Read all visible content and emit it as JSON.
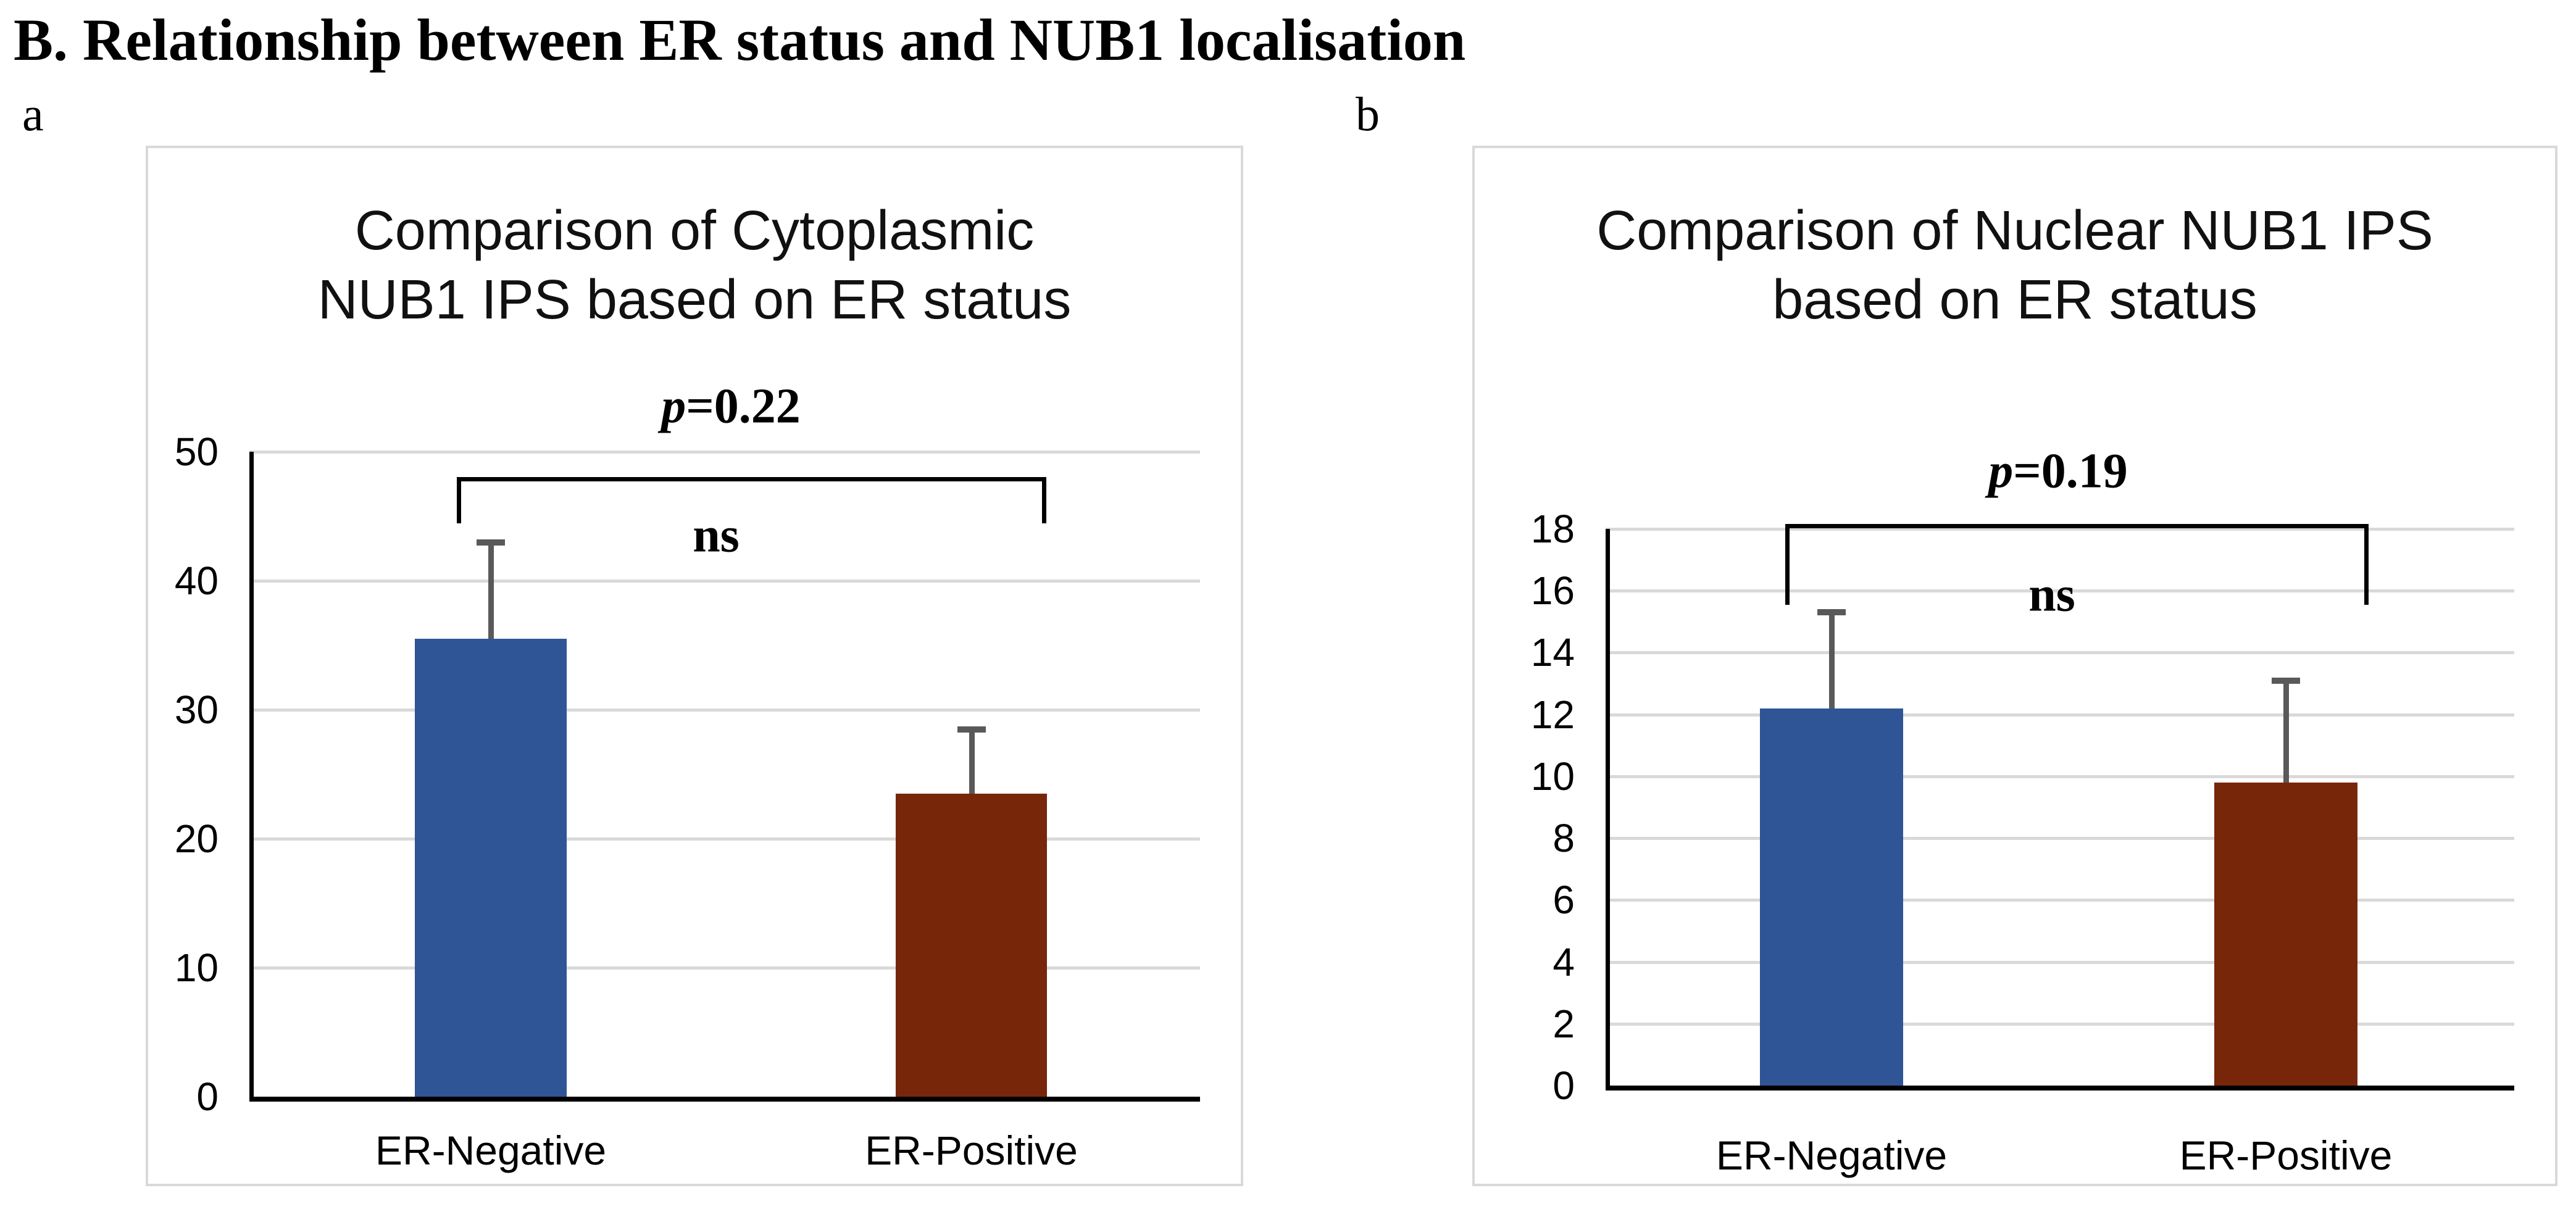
{
  "page": {
    "heading": "B. Relationship between ER status and NUB1 localisation",
    "background": "#FFFFFF"
  },
  "markers": {
    "a": "a",
    "b": "b"
  },
  "colors": {
    "bar_er_negative": "#2F5597",
    "bar_er_positive": "#78260A",
    "error_bar": "#595959",
    "gridline": "#D9D9D9",
    "panel_border": "#D9D9D9",
    "axis": "#000000",
    "text": "#000000"
  },
  "chart_data": [
    {
      "key": "a",
      "type": "bar",
      "title_lines": [
        "Comparison of Cytoplasmic",
        "NUB1 IPS based on ER status"
      ],
      "p_symbol": "p",
      "p_value_text": "=0.22",
      "ns_label": "ns",
      "categories": [
        "ER-Negative",
        "ER-Positive"
      ],
      "values": [
        35.5,
        23.5
      ],
      "error_bar_tops": [
        43.2,
        28.7
      ],
      "bar_colors": [
        "#2F5597",
        "#78260A"
      ],
      "ylim": [
        0,
        50
      ],
      "yticks": [
        0,
        10,
        20,
        30,
        40,
        50
      ],
      "grid": true,
      "legend_position": "none",
      "xlabel": "",
      "ylabel": ""
    },
    {
      "key": "b",
      "type": "bar",
      "title_lines": [
        "Comparison of Nuclear NUB1 IPS",
        "based on ER status"
      ],
      "p_symbol": "p",
      "p_value_text": "=0.19",
      "ns_label": "ns",
      "categories": [
        "ER-Negative",
        "ER-Positive"
      ],
      "values": [
        12.2,
        9.8
      ],
      "error_bar_tops": [
        15.4,
        13.2
      ],
      "bar_colors": [
        "#2F5597",
        "#78260A"
      ],
      "ylim": [
        0,
        18
      ],
      "yticks": [
        0,
        2,
        4,
        6,
        8,
        10,
        12,
        14,
        16,
        18
      ],
      "grid": true,
      "legend_position": "none",
      "xlabel": "",
      "ylabel": ""
    }
  ]
}
